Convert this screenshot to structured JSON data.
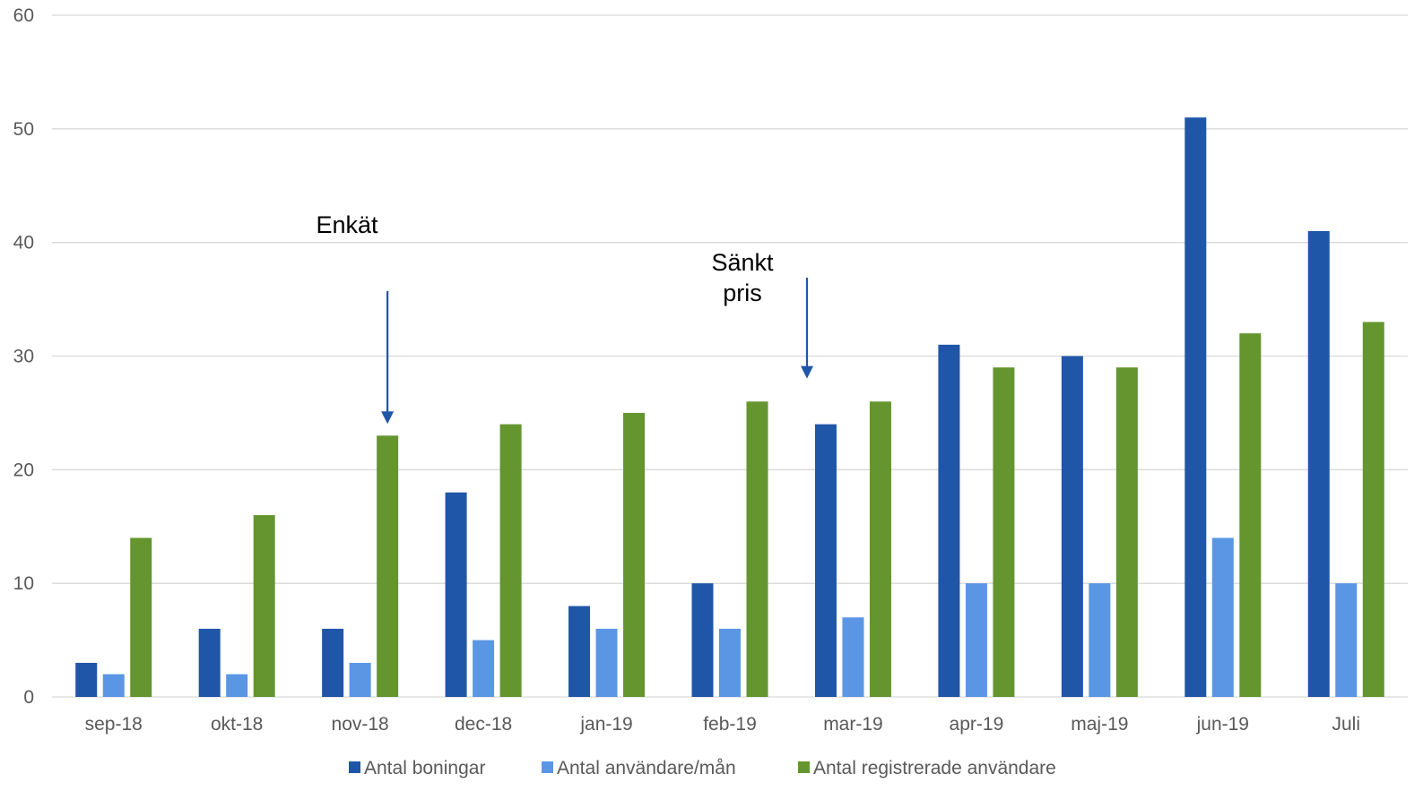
{
  "chart_data": {
    "type": "bar",
    "categories": [
      "sep-18",
      "okt-18",
      "nov-18",
      "dec-18",
      "jan-19",
      "feb-19",
      "mar-19",
      "apr-19",
      "maj-19",
      "jun-19",
      "Juli"
    ],
    "series": [
      {
        "name": "Antal boningar",
        "color": "#1f56a8",
        "values": [
          3,
          6,
          6,
          18,
          8,
          10,
          24,
          31,
          30,
          51,
          41
        ]
      },
      {
        "name": "Antal användare/mån",
        "color": "#5b96e5",
        "values": [
          2,
          2,
          3,
          5,
          6,
          6,
          7,
          10,
          10,
          14,
          10
        ]
      },
      {
        "name": "Antal registrerade användare",
        "color": "#64952f",
        "values": [
          14,
          16,
          23,
          24,
          25,
          26,
          26,
          29,
          29,
          32,
          33
        ]
      }
    ],
    "y_ticks": [
      "0",
      "10",
      "20",
      "30",
      "40",
      "50",
      "60"
    ],
    "ylim": [
      0,
      60
    ],
    "grid": true,
    "legend": "bottom",
    "annotations": [
      {
        "lines": [
          "Enkät"
        ],
        "arrow_at_category": "nov-18",
        "arrow_series": "Antal registrerade användare",
        "arrow_value": 23
      },
      {
        "lines": [
          "Sänkt",
          "pris"
        ],
        "arrow_at_category": "mar-19",
        "arrow_series": "Antal boningar",
        "arrow_value": 24
      }
    ]
  }
}
